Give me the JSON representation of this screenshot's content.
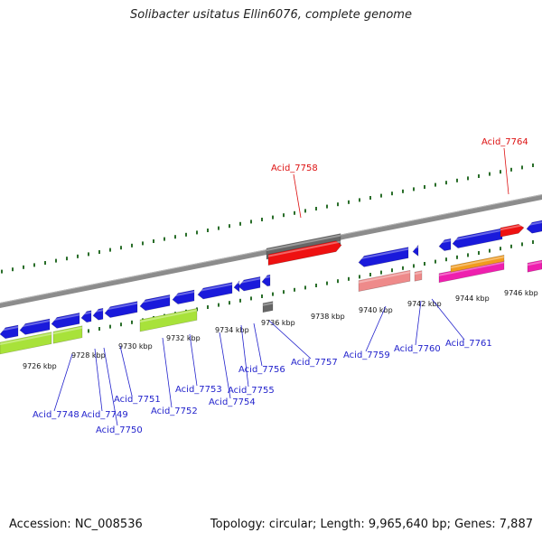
{
  "title": "Solibacter usitatus Ellin6076, complete genome",
  "footer": {
    "accession": "Accession: NC_008536",
    "summary": "Topology: circular; Length: 9,965,640 bp; Genes: 7,887"
  },
  "colors": {
    "forward_cds": "#1a1adb",
    "backbone": "#8c8c8c",
    "highlight_red": "#ee1111",
    "highlight_gray": "#666666",
    "lime": "#a8e23a",
    "salmon": "#ee8a8a",
    "magenta": "#ee1fae",
    "orange": "#f19b1e",
    "tick_green": "#2a6e2a",
    "label_blue": "#2222cc",
    "label_red": "#dd1111"
  },
  "ticks_lower": [
    {
      "label": "9726 kbp"
    },
    {
      "label": "9728 kbp"
    },
    {
      "label": "9730 kbp"
    },
    {
      "label": "9732 kbp"
    },
    {
      "label": "9734 kbp"
    },
    {
      "label": "9736 kbp"
    },
    {
      "label": "9738 kbp"
    },
    {
      "label": "9740 kbp"
    },
    {
      "label": "9742 kbp"
    },
    {
      "label": "9744 kbp"
    },
    {
      "label": "9746 kbp"
    }
  ],
  "genes_lower": [
    {
      "label": "Acid_7748"
    },
    {
      "label": "Acid_7749"
    },
    {
      "label": "Acid_7750"
    },
    {
      "label": "Acid_7751"
    },
    {
      "label": "Acid_7752"
    },
    {
      "label": "Acid_7753"
    },
    {
      "label": "Acid_7754"
    },
    {
      "label": "Acid_7755"
    },
    {
      "label": "Acid_7756"
    },
    {
      "label": "Acid_7757"
    },
    {
      "label": "Acid_7759"
    },
    {
      "label": "Acid_7760"
    },
    {
      "label": "Acid_7761"
    }
  ],
  "genes_upper": [
    {
      "label": "Acid_7758"
    },
    {
      "label": "Acid_7764"
    }
  ]
}
